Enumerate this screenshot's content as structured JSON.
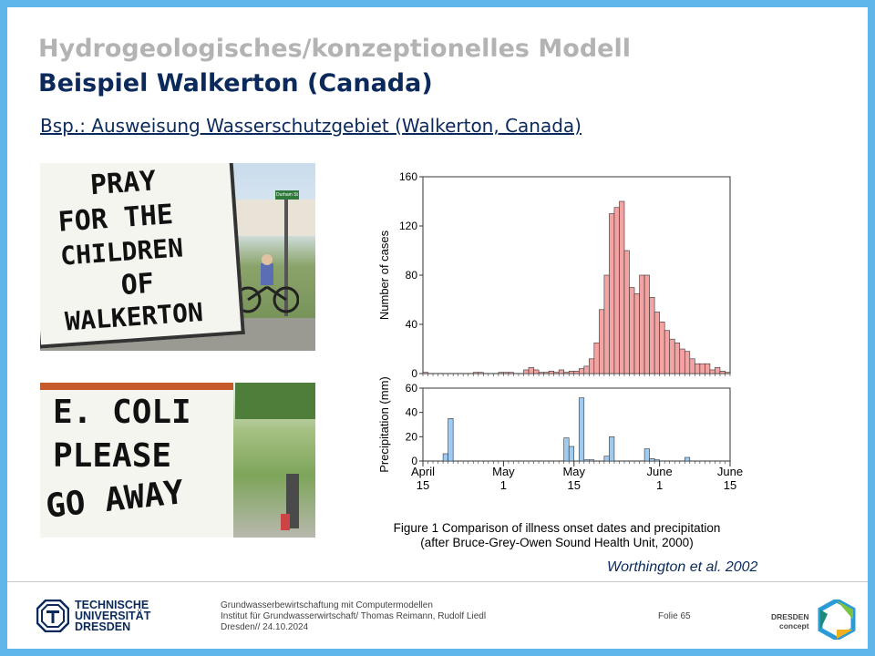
{
  "slide": {
    "title_gray": "Hydrogeologisches/konzeptionelles Modell",
    "title_main": "Beispiel Walkerton (Canada)",
    "subtitle": "Bsp.: Ausweisung Wasserschutzgebiet (Walkerton, Canada)"
  },
  "photo_top": {
    "sign_lines": [
      "PRAY",
      "FOR THE",
      "CHILDREN",
      "OF",
      "WALKERTON"
    ],
    "street_sign": "Durham St"
  },
  "photo_bottom": {
    "sign_lines": [
      "E. COLI",
      "PLEASE",
      "GO AWAY"
    ]
  },
  "figure": {
    "caption_line1": "Figure 1  Comparison of illness onset dates and precipitation",
    "caption_line2": "(after Bruce-Grey-Owen Sound Health Unit, 2000)",
    "colors": {
      "cases": "#f4a3a3",
      "precip": "#9ecbf2",
      "stroke": "#333333"
    }
  },
  "chart_data": [
    {
      "type": "bar",
      "ylabel": "Number of cases",
      "ylim": [
        0,
        160
      ],
      "yticks": [
        0,
        40,
        80,
        120,
        160
      ],
      "x_start_day": "April 15",
      "days": 61,
      "values": [
        1,
        0,
        0,
        0,
        0,
        0,
        0,
        0,
        0,
        0,
        1,
        1,
        0,
        0,
        0,
        1,
        1,
        1,
        0,
        0,
        3,
        5,
        3,
        1,
        1,
        2,
        1,
        3,
        1,
        2,
        2,
        4,
        6,
        12,
        25,
        52,
        80,
        130,
        135,
        140,
        100,
        70,
        65,
        80,
        80,
        62,
        50,
        42,
        35,
        28,
        25,
        20,
        18,
        12,
        8,
        8,
        8,
        3,
        5,
        2,
        1
      ]
    },
    {
      "type": "bar",
      "ylabel": "Precipitation  (mm)",
      "ylim": [
        0,
        60
      ],
      "yticks": [
        0,
        20,
        40,
        60
      ],
      "x_start_day": "April 15",
      "days": 61,
      "values": [
        0,
        0,
        0,
        0,
        6,
        35,
        0,
        0,
        0,
        0,
        0,
        0,
        0,
        0,
        0,
        0,
        0,
        0,
        0,
        0,
        0,
        0,
        0,
        0,
        0,
        0,
        0,
        0,
        19,
        12,
        0,
        52,
        1,
        1,
        0,
        0,
        4,
        20,
        0,
        0,
        0,
        0,
        0,
        0,
        10,
        2,
        1,
        0,
        0,
        0,
        0,
        0,
        3,
        0,
        0,
        0,
        0,
        0,
        0,
        0,
        0
      ],
      "x_tick_labels": [
        {
          "top": "April",
          "bottom": "15"
        },
        {
          "top": "May",
          "bottom": "1"
        },
        {
          "top": "May",
          "bottom": "15"
        },
        {
          "top": "June",
          "bottom": "1"
        },
        {
          "top": "June",
          "bottom": "15"
        }
      ],
      "x_tick_days": [
        0,
        16,
        30,
        47,
        61
      ]
    }
  ],
  "credit": "Worthington et al. 2002",
  "footer": {
    "logo_left": [
      "TECHNISCHE",
      "UNIVERSITÄT",
      "DRESDEN"
    ],
    "line1": "Grundwasserbewirtschaftung mit Computermodellen",
    "line2": "Institut für Grundwasserwirtschaft/ Thomas Reimann, Rudolf Liedl",
    "line3": "Dresden// 24.10.2024",
    "page": "Folie 65",
    "logo_right": [
      "DRESDEN",
      "concept"
    ]
  }
}
